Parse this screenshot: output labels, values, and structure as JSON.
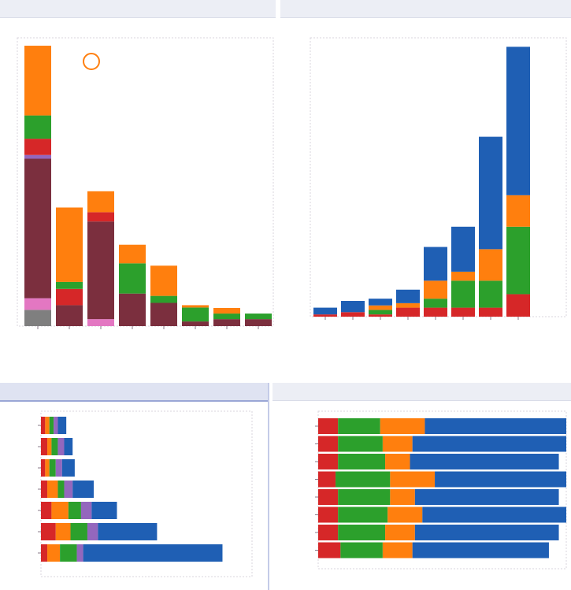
{
  "colors": {
    "maroon": "#7b2f3e",
    "orange": "#ff7f0e",
    "green": "#2ca02c",
    "red": "#d62728",
    "purple": "#9467bd",
    "pink": "#e377c2",
    "gray": "#7f7f7f",
    "blue": "#1f5fb4"
  },
  "panels": {
    "tl": {
      "title": ""
    },
    "tr": {
      "title": ""
    },
    "bl": {
      "title": ""
    },
    "br": {
      "title": ""
    }
  },
  "chart_data": [
    {
      "type": "bar",
      "panel": "tl",
      "title": "",
      "stacked": true,
      "categories": [
        "",
        "",
        "",
        "",
        "",
        "",
        "",
        ""
      ],
      "ylim": [
        0,
        62
      ],
      "legend": {
        "placement": "top-right",
        "label": ""
      },
      "series": [
        {
          "color": "gray",
          "values": [
            3.5,
            0,
            0,
            0,
            0,
            0,
            0,
            0
          ]
        },
        {
          "color": "pink",
          "values": [
            2.5,
            0,
            1.5,
            0,
            0,
            0,
            0,
            0
          ]
        },
        {
          "color": "maroon",
          "values": [
            30,
            4.5,
            21,
            7,
            5,
            1,
            1.5,
            1.5
          ]
        },
        {
          "color": "purple",
          "values": [
            0.8,
            0,
            0,
            0,
            0,
            0,
            0,
            0
          ]
        },
        {
          "color": "red",
          "values": [
            3.5,
            3.5,
            2,
            0,
            0,
            0,
            0,
            0
          ]
        },
        {
          "color": "green",
          "values": [
            5,
            1.5,
            0,
            6.5,
            1.5,
            3,
            1.2,
            1.2
          ]
        },
        {
          "color": "orange",
          "values": [
            15,
            16,
            4.5,
            4,
            6.5,
            0.5,
            1.2,
            0
          ]
        }
      ]
    },
    {
      "type": "bar",
      "panel": "tr",
      "title": "",
      "stacked": true,
      "categories": [
        "",
        "",
        "",
        "",
        "",
        "",
        "",
        ""
      ],
      "ylim": [
        0,
        62
      ],
      "series": [
        {
          "color": "red",
          "values": [
            0.5,
            1,
            0.5,
            2,
            2,
            2,
            2,
            5
          ]
        },
        {
          "color": "green",
          "values": [
            0,
            0,
            1,
            0,
            2,
            6,
            6,
            15
          ]
        },
        {
          "color": "orange",
          "values": [
            0,
            0,
            1,
            1,
            4,
            2,
            7,
            7
          ]
        },
        {
          "color": "blue",
          "values": [
            1.5,
            2.5,
            1.5,
            3,
            7.5,
            10,
            25,
            33
          ]
        }
      ]
    },
    {
      "type": "bar",
      "panel": "bl",
      "orientation": "horizontal",
      "title": "",
      "stacked": true,
      "categories": [
        "",
        "",
        "",
        "",
        "",
        "",
        ""
      ],
      "xlim": [
        0,
        100
      ],
      "series": [
        {
          "color": "red",
          "values": [
            2,
            3,
            2,
            3,
            5,
            7,
            3
          ]
        },
        {
          "color": "orange",
          "values": [
            2,
            2,
            2,
            5,
            8,
            7,
            6
          ]
        },
        {
          "color": "green",
          "values": [
            2,
            3,
            3,
            3,
            6,
            8,
            8
          ]
        },
        {
          "color": "purple",
          "values": [
            2,
            3,
            3,
            4,
            5,
            5,
            3
          ]
        },
        {
          "color": "blue",
          "values": [
            4,
            4,
            6,
            10,
            12,
            28,
            66
          ]
        }
      ]
    },
    {
      "type": "bar",
      "panel": "br",
      "orientation": "horizontal",
      "title": "",
      "stacked": true,
      "categories": [
        "",
        "",
        "",
        "",
        "",
        "",
        "",
        ""
      ],
      "xlim": [
        0,
        100
      ],
      "series": [
        {
          "color": "red",
          "values": [
            8,
            8,
            8,
            7,
            8,
            8,
            8,
            9
          ]
        },
        {
          "color": "green",
          "values": [
            17,
            18,
            19,
            22,
            21,
            20,
            19,
            17
          ]
        },
        {
          "color": "orange",
          "values": [
            18,
            12,
            10,
            18,
            10,
            14,
            12,
            12
          ]
        },
        {
          "color": "blue",
          "values": [
            57,
            62,
            60,
            53,
            58,
            58,
            58,
            55
          ]
        }
      ]
    }
  ]
}
